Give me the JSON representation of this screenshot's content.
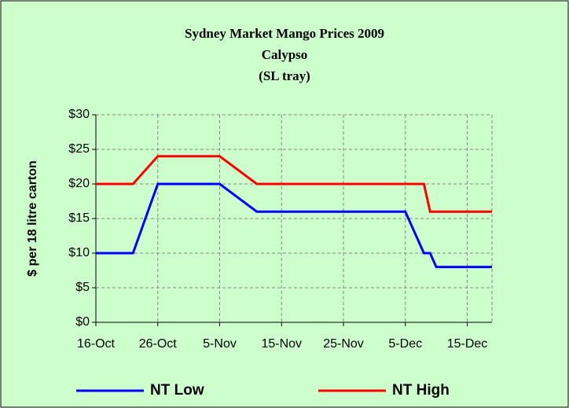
{
  "chart_data": {
    "type": "line",
    "title": [
      "Sydney Market Mango Prices 2009",
      "Calypso",
      "(SL tray)"
    ],
    "y_label": "$ per 18 litre carton",
    "x": [
      "16-Oct",
      "22-Oct",
      "26-Oct",
      "5-Nov",
      "11-Nov",
      "5-Dec",
      "8-Dec",
      "9-Dec",
      "10-Dec",
      "19-Dec"
    ],
    "xlim": [
      "16-Oct",
      "19-Dec"
    ],
    "xticks": [
      "16-Oct",
      "26-Oct",
      "5-Nov",
      "15-Nov",
      "25-Nov",
      "5-Dec",
      "15-Dec"
    ],
    "ylim": [
      0,
      30
    ],
    "yticks": [
      {
        "value": 0,
        "label": "$0"
      },
      {
        "value": 5,
        "label": "$5"
      },
      {
        "value": 10,
        "label": "$10"
      },
      {
        "value": 15,
        "label": "$15"
      },
      {
        "value": 20,
        "label": "$20"
      },
      {
        "value": 25,
        "label": "$25"
      },
      {
        "value": 30,
        "label": "$30"
      }
    ],
    "grid": true,
    "legend": "bottom",
    "series": [
      {
        "name": "NT Low",
        "color": "#0000ff",
        "values": [
          10,
          10,
          20,
          20,
          16,
          16,
          10,
          10,
          8,
          8
        ]
      },
      {
        "name": "NT High",
        "color": "#ff0000",
        "values": [
          20,
          20,
          24,
          24,
          20,
          20,
          20,
          16,
          16,
          16
        ]
      }
    ]
  }
}
